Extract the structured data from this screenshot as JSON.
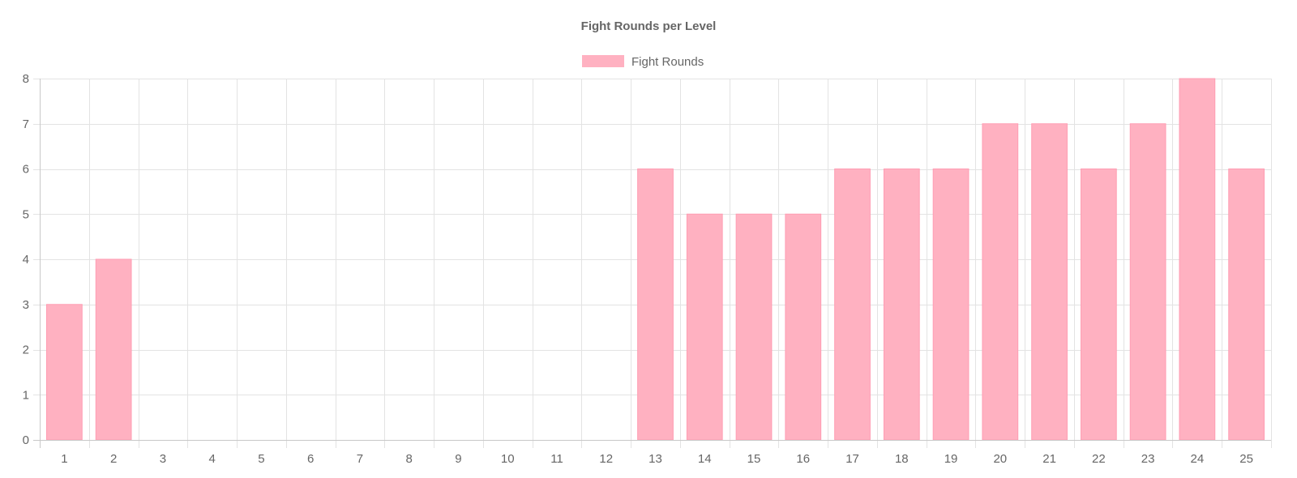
{
  "chart_data": {
    "type": "bar",
    "title": "Fight Rounds per Level",
    "categories": [
      "1",
      "2",
      "3",
      "4",
      "5",
      "6",
      "7",
      "8",
      "9",
      "10",
      "11",
      "12",
      "13",
      "14",
      "15",
      "16",
      "17",
      "18",
      "19",
      "20",
      "21",
      "22",
      "23",
      "24",
      "25"
    ],
    "series": [
      {
        "name": "Fight Rounds",
        "values": [
          3,
          4,
          0,
          0,
          0,
          0,
          0,
          0,
          0,
          0,
          0,
          0,
          6,
          5,
          5,
          5,
          6,
          6,
          6,
          7,
          7,
          6,
          7,
          8,
          6
        ]
      }
    ],
    "y_ticks": [
      0,
      1,
      2,
      3,
      4,
      5,
      6,
      7,
      8
    ],
    "ylim": [
      0,
      8
    ],
    "xlabel": "",
    "ylabel": "",
    "grid": true,
    "legend_position": "top-center",
    "bar_fill": "#ffb1c1",
    "bar_border": "#ff9db3"
  }
}
